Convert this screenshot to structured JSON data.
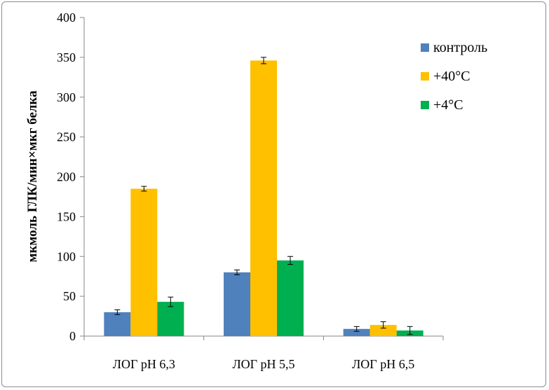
{
  "chart_data": {
    "type": "bar",
    "title": "",
    "xlabel": "",
    "ylabel": "мкмоль ГЛК/мин×мкг белка",
    "ylim": [
      0,
      400
    ],
    "yticks": [
      "0",
      "50",
      "100",
      "150",
      "200",
      "250",
      "300",
      "350",
      "400"
    ],
    "categories": [
      "ЛОГ pH 6,3",
      "ЛОГ pH 5,5",
      "ЛОГ pH 6,5"
    ],
    "series": [
      {
        "name": "контроль",
        "color": "#4f81bd",
        "values": [
          30,
          80,
          9
        ],
        "errors": [
          3,
          3,
          3
        ]
      },
      {
        "name": "+40°С",
        "color": "#ffc000",
        "values": [
          185,
          346,
          14
        ],
        "errors": [
          3,
          4,
          4
        ]
      },
      {
        "name": "+4°С",
        "color": "#00b050",
        "values": [
          43,
          95,
          7
        ],
        "errors": [
          6,
          5,
          5
        ]
      }
    ],
    "grid": false,
    "legend_position": "right"
  }
}
